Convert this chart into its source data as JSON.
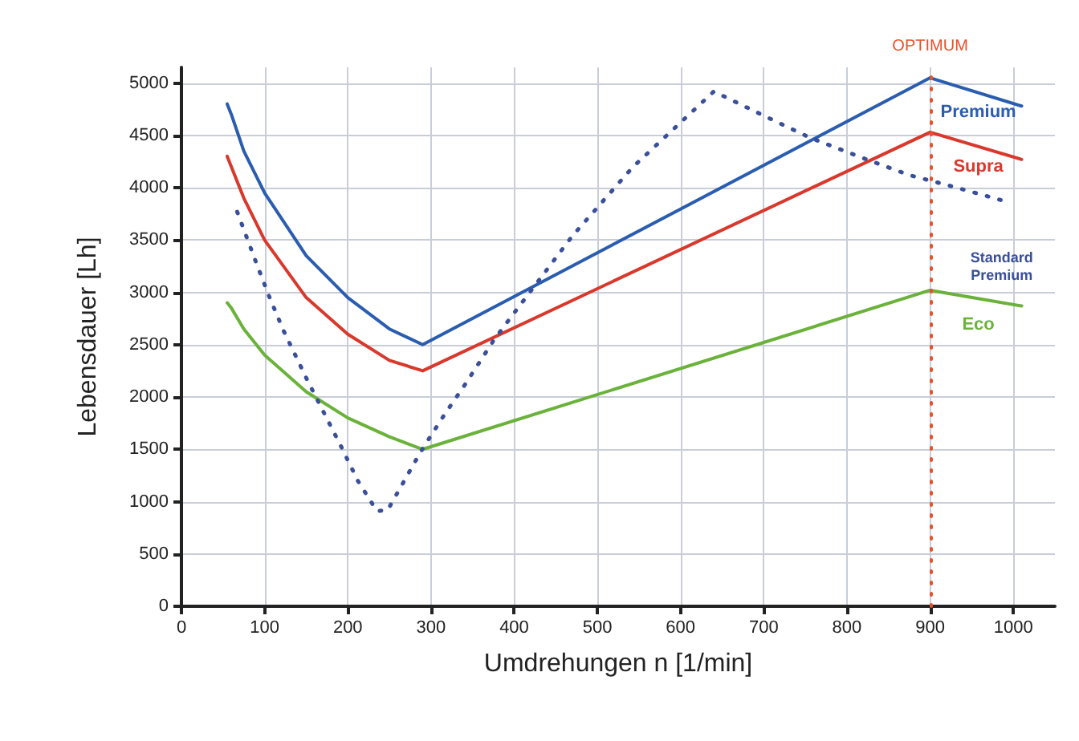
{
  "chart_data": {
    "type": "line",
    "xlabel": "Umdrehungen n [1/min]",
    "ylabel": "Lebensdauer [Lh]",
    "xlim": [
      0,
      1050
    ],
    "xticks": [
      0,
      100,
      200,
      300,
      400,
      500,
      600,
      700,
      800,
      900,
      1000
    ],
    "ylim": [
      0,
      5150
    ],
    "yticks": [
      0,
      500,
      1000,
      1500,
      2000,
      2500,
      3000,
      3500,
      4000,
      4500,
      5000
    ],
    "grid": true,
    "legend": false,
    "marker": "none",
    "line_style": "solid",
    "series": [
      {
        "name": "Premium",
        "color": "#2a5db0",
        "x": [
          55,
          60,
          75,
          100,
          150,
          200,
          250,
          290,
          900,
          1010
        ],
        "values": [
          4800,
          4700,
          4350,
          3950,
          3350,
          2950,
          2650,
          2500,
          5050,
          4780
        ]
      },
      {
        "name": "Supra",
        "color": "#d9382c",
        "x": [
          55,
          60,
          75,
          100,
          150,
          200,
          250,
          290,
          900,
          1010
        ],
        "values": [
          4300,
          4200,
          3900,
          3500,
          2950,
          2600,
          2350,
          2250,
          4530,
          4270
        ]
      },
      {
        "name": "Eco",
        "color": "#6ab23a",
        "x": [
          55,
          60,
          75,
          100,
          150,
          200,
          250,
          290,
          900,
          1010
        ],
        "values": [
          2900,
          2850,
          2650,
          2400,
          2050,
          1800,
          1620,
          1500,
          3020,
          2870
        ]
      },
      {
        "name": "Standard\nPremium",
        "color": "#3a4f9a",
        "line_style": "dotted",
        "x": [
          67,
          90,
          106,
          123,
          152,
          193,
          212,
          235,
          248,
          280,
          291,
          316,
          341,
          376,
          470,
          543,
          640,
          697,
          755,
          817,
          875,
          923,
          986
        ],
        "values": [
          3770,
          3280,
          2950,
          2630,
          2150,
          1510,
          1200,
          910,
          920,
          1370,
          1520,
          1830,
          2120,
          2550,
          3540,
          4200,
          4920,
          4700,
          4480,
          4290,
          4120,
          4020,
          3880
        ]
      }
    ],
    "ref_lines": [
      {
        "axis": "x",
        "value": 900,
        "label": "OPTIMUM",
        "color": "#e8502a",
        "line_style": "dotted"
      }
    ]
  }
}
